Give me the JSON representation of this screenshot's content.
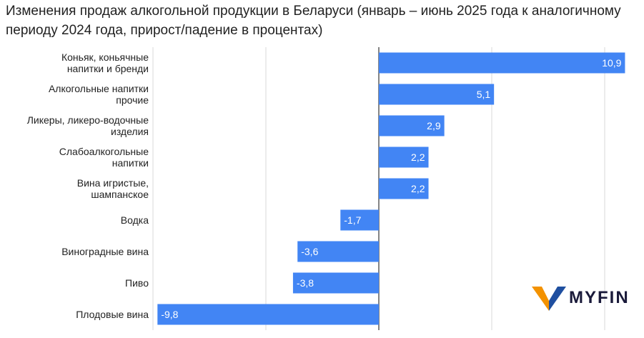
{
  "chart_data": {
    "type": "bar",
    "orientation": "horizontal",
    "title": "Изменения продаж алкогольной продукции в Беларуси (январь – июнь 2025 года к аналогичному периоду 2024 года, прирост/падение в процентах)",
    "categories": [
      [
        "Коньяк, коньячные",
        "напитки и бренди"
      ],
      [
        "Алкогольные напитки",
        "прочие"
      ],
      [
        "Ликеры, ликеро-водочные",
        "изделия"
      ],
      [
        "Слабоалкогольные",
        "напитки"
      ],
      [
        "Вина игристые,",
        "шампанское"
      ],
      [
        "Водка"
      ],
      [
        "Виноградные вина"
      ],
      [
        "Пиво"
      ],
      [
        "Плодовые вина"
      ]
    ],
    "values": [
      10.9,
      5.1,
      2.9,
      2.2,
      2.2,
      -1.7,
      -3.6,
      -3.8,
      -9.8
    ],
    "value_labels": [
      "10,9",
      "5,1",
      "2,9",
      "2,2",
      "2,2",
      "-1,7",
      "-3,6",
      "-3,8",
      "-9,8"
    ],
    "xlim": [
      -10,
      11
    ],
    "grid": true,
    "bar_color": "#4285f4"
  },
  "brand": {
    "name": "MYFIN",
    "colors": {
      "orange": "#f39200",
      "blue": "#1f4fa0"
    }
  }
}
